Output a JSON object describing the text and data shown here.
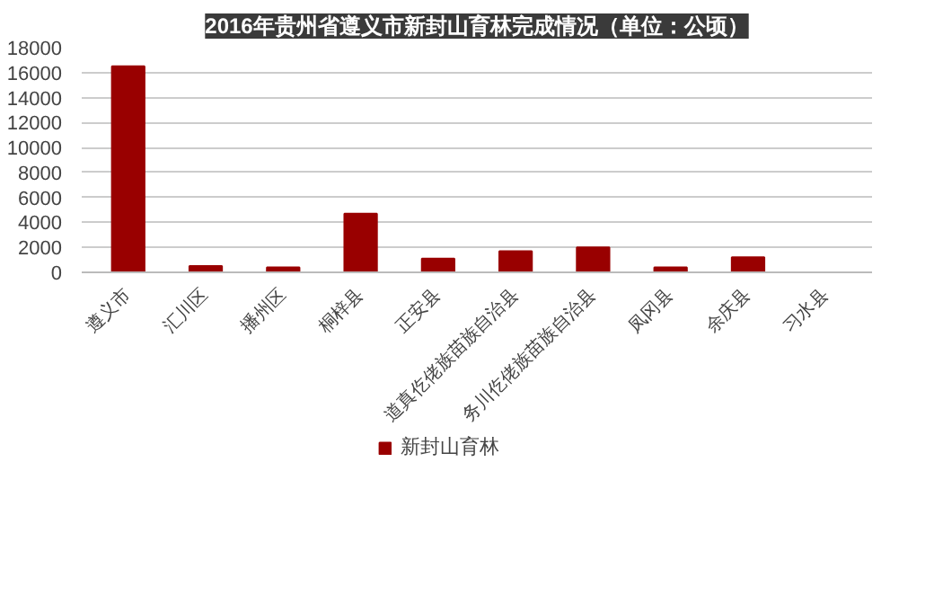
{
  "chart_data": {
    "type": "bar",
    "title": "2016年贵州省遵义市新封山育林完成情况（单位：公顷）",
    "categories": [
      "遵义市",
      "汇川区",
      "播州区",
      "桐梓县",
      "正安县",
      "道真仡佬族苗族自治县",
      "务川仡佬族苗族自治县",
      "凤冈县",
      "余庆县",
      "习水县"
    ],
    "series": [
      {
        "name": "新封山育林",
        "color": "#990000",
        "values": [
          16500,
          500,
          400,
          4700,
          1100,
          1700,
          2000,
          400,
          1200,
          0
        ]
      }
    ],
    "ylim": [
      0,
      18000
    ],
    "yticks": [
      0,
      2000,
      4000,
      6000,
      8000,
      10000,
      12000,
      14000,
      16000,
      18000
    ],
    "grid": "y",
    "legend": "bottom"
  }
}
